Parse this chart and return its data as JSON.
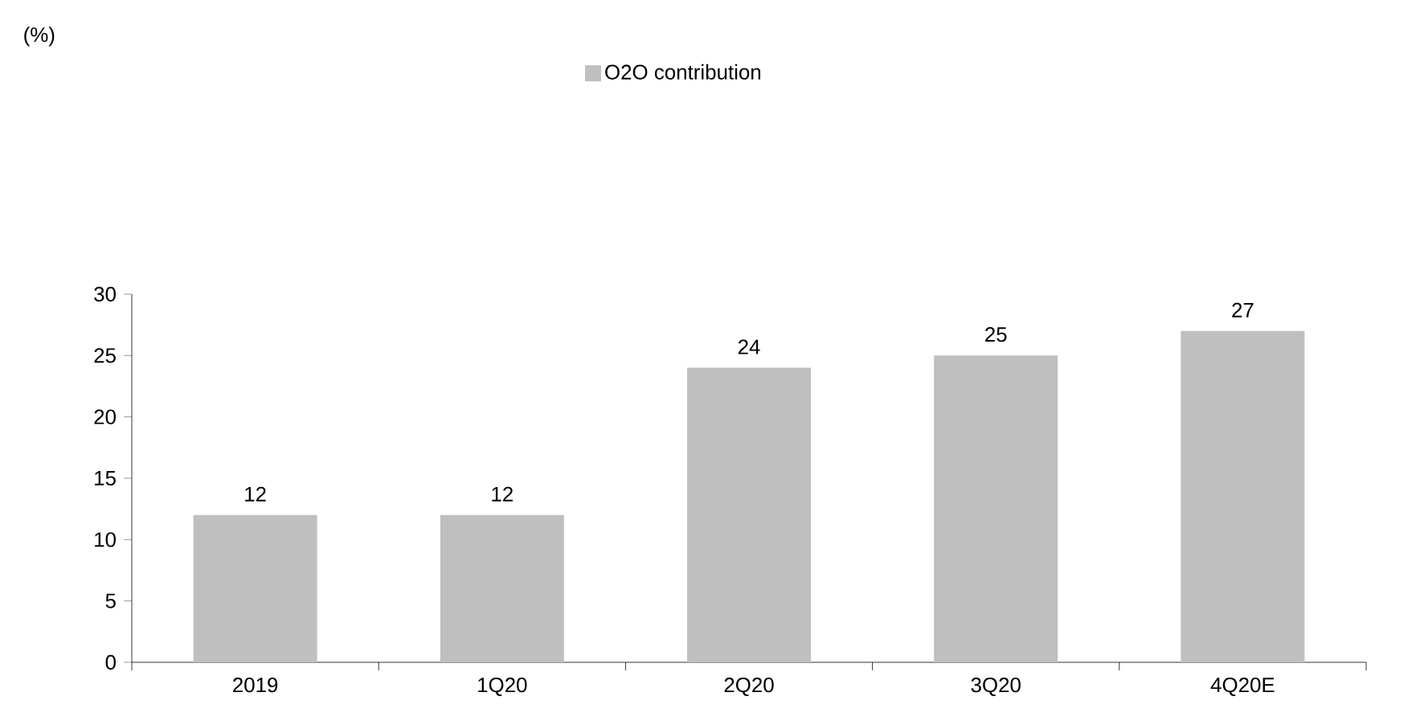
{
  "chart_data": {
    "type": "bar",
    "annotations": [
      "(%)"
    ],
    "categories": [
      "2019",
      "1Q20",
      "2Q20",
      "3Q20",
      "4Q20E"
    ],
    "series": [
      {
        "name": "O2O contribution",
        "color": "#bfbfbf",
        "values": [
          12,
          12,
          24,
          25,
          27
        ]
      }
    ],
    "ylim": [
      0,
      30
    ],
    "yticks": [
      0,
      5,
      10,
      15,
      20,
      25,
      30
    ],
    "data_labels": true,
    "legend": "top",
    "grid": false
  }
}
